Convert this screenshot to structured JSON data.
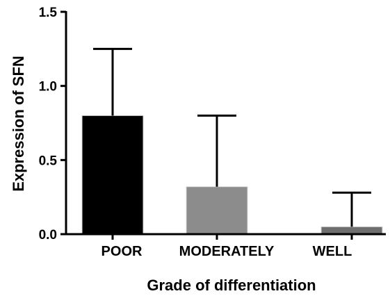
{
  "chart_data": {
    "type": "bar",
    "categories": [
      "POOR",
      "MODERATELY",
      "WELL"
    ],
    "values": [
      0.8,
      0.32,
      0.05
    ],
    "error_upper": [
      1.25,
      0.8,
      0.28
    ],
    "colors": [
      "#000000",
      "#8c8c8c",
      "#6e6e6e"
    ],
    "xlabel": "Grade of differentiation",
    "ylabel": "Expression of SFN",
    "ylim": [
      0,
      1.5
    ],
    "yticks": [
      "0.0",
      "0.5",
      "1.0",
      "1.5"
    ],
    "grid": false
  }
}
